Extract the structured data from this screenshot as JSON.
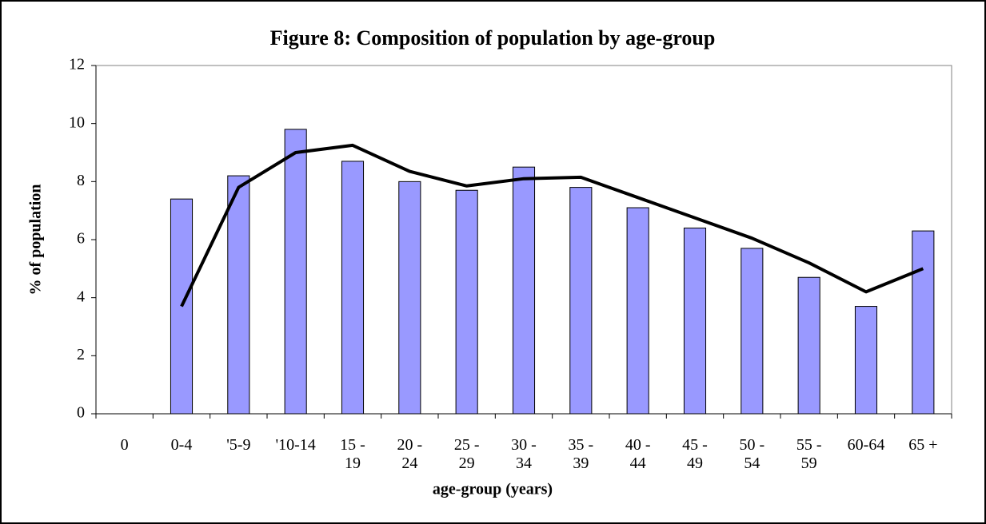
{
  "chart_data": {
    "type": "bar",
    "title": "Figure 8:  Composition of population  by age-group",
    "xlabel": "age-group (years)",
    "ylabel": "% of population",
    "categories": [
      "0",
      "0-4",
      "'5-9",
      "'10-14",
      "15 - 19",
      "20 - 24",
      "25 - 29",
      "30 - 34",
      "35 - 39",
      "40 - 44",
      "45 - 49",
      "50 - 54",
      "55 - 59",
      "60-64",
      "65 +"
    ],
    "series": [
      {
        "type": "bar",
        "color": "#9999ff",
        "values": [
          null,
          7.4,
          8.2,
          9.8,
          8.7,
          8.0,
          7.7,
          8.5,
          7.8,
          7.1,
          6.4,
          5.7,
          4.7,
          3.7,
          6.3
        ]
      },
      {
        "type": "line",
        "color": "#000000",
        "values": [
          null,
          3.7,
          7.8,
          9.0,
          9.25,
          8.35,
          7.85,
          8.1,
          8.15,
          7.45,
          6.75,
          6.05,
          5.2,
          4.2,
          5.0
        ]
      }
    ],
    "ylim": [
      0,
      12
    ],
    "yticks": [
      0,
      2,
      4,
      6,
      8,
      10,
      12
    ],
    "grid": false
  }
}
